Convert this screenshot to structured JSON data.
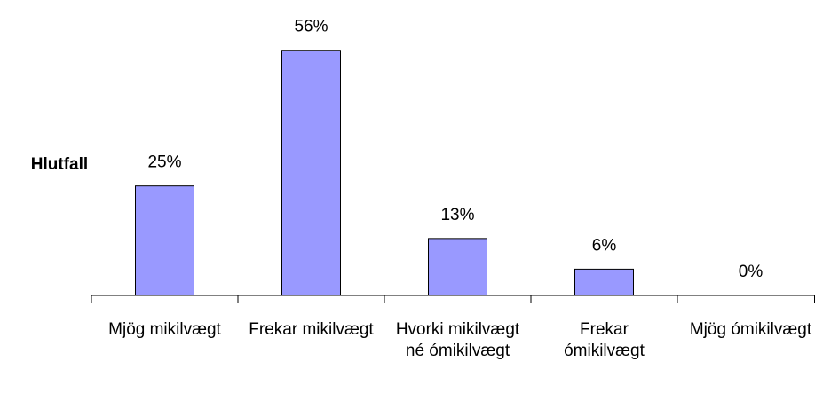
{
  "chart_data": {
    "type": "bar",
    "y_label": "Hlutfall",
    "categories": [
      "Mjög mikilvægt",
      "Frekar mikilvægt",
      "Hvorki mikilvægt né ómikilvægt",
      "Frekar ómikilvægt",
      "Mjög ómikilvægt"
    ],
    "values": [
      25,
      56,
      13,
      6,
      0
    ],
    "value_labels": [
      "25%",
      "56%",
      "13%",
      "6%",
      "0%"
    ],
    "color": "#9999ff",
    "ylim": [
      0,
      60
    ]
  }
}
